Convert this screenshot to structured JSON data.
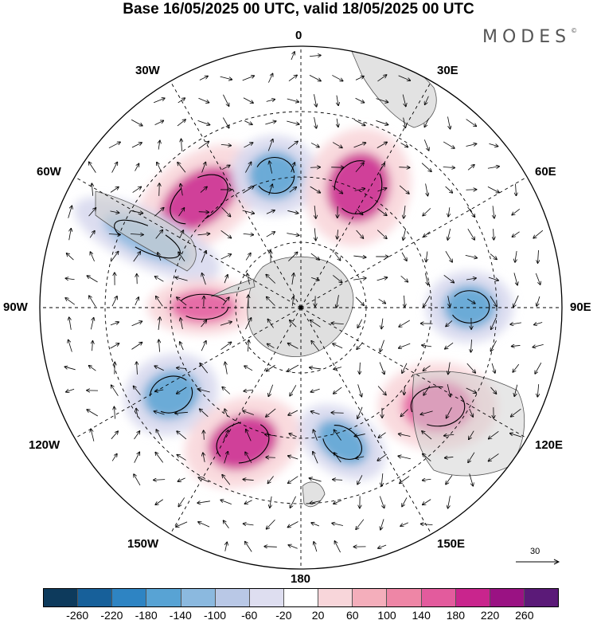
{
  "title": "Base 16/05/2025 00 UTC, valid 18/05/2025 00 UTC",
  "brand": "MODES",
  "brand_mark": "©",
  "longitude_labels": {
    "top": "0",
    "bottom": "180",
    "left": "90W",
    "right": "90E",
    "upper_left_1": "30W",
    "upper_left_2": "60W",
    "upper_right_1": "30E",
    "upper_right_2": "60E",
    "lower_left_1": "120W",
    "lower_left_2": "150W",
    "lower_right_1": "120E",
    "lower_right_2": "150E"
  },
  "reference_vector": "30",
  "colorbar": {
    "colors": [
      "#0d3a5c",
      "#17609a",
      "#2e84c3",
      "#58a3d4",
      "#8bb9df",
      "#b9c8e6",
      "#dedef0",
      "#ffffff",
      "#f8d6da",
      "#f4aebb",
      "#ee86a6",
      "#e35b9d",
      "#c9258d",
      "#9a1283",
      "#5b1a78"
    ],
    "tick_labels": [
      "-260",
      "-220",
      "-180",
      "-140",
      "-100",
      "-60",
      "-20",
      "20",
      "60",
      "100",
      "140",
      "180",
      "220",
      "260"
    ]
  },
  "field_anomalies": [
    {
      "center": "30W-60W",
      "sign": "positive",
      "level": "180"
    },
    {
      "center": "near 0",
      "sign": "negative",
      "level": "-140"
    },
    {
      "center": "30E-60E",
      "sign": "positive",
      "level": "180"
    },
    {
      "center": "75W",
      "sign": "negative",
      "level": "-100"
    },
    {
      "center": "90W",
      "sign": "positive",
      "level": "140"
    },
    {
      "center": "90E",
      "sign": "negative",
      "level": "-140"
    },
    {
      "center": "110W",
      "sign": "negative",
      "level": "-140"
    },
    {
      "center": "150W",
      "sign": "positive",
      "level": "180"
    },
    {
      "center": "165E",
      "sign": "negative",
      "level": "-140"
    },
    {
      "center": "120E",
      "sign": "positive",
      "level": "140"
    }
  ]
}
